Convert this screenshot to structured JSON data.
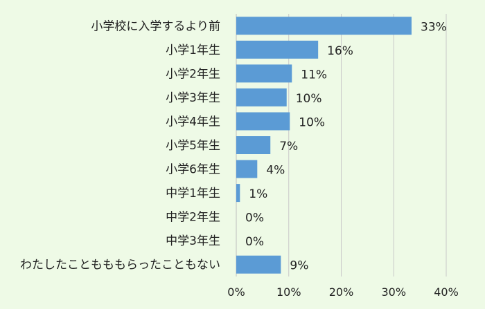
{
  "chart_data": {
    "type": "bar",
    "orientation": "horizontal",
    "categories": [
      "小学校に入学するより前",
      "小学1年生",
      "小学2年生",
      "小学3年生",
      "小学4年生",
      "小学5年生",
      "小学6年生",
      "中学1年生",
      "中学2年生",
      "中学3年生",
      "わたしたこともももらったこともない"
    ],
    "values": [
      33.4,
      15.6,
      10.6,
      9.6,
      10.2,
      6.5,
      4.0,
      0.7,
      0,
      0,
      8.5
    ],
    "value_labels": [
      "33%",
      "16%",
      "11%",
      "10%",
      "10%",
      "7%",
      "4%",
      "1%",
      "0%",
      "0%",
      "9%"
    ],
    "xlim": [
      0,
      40
    ],
    "xticks": [
      0,
      10,
      20,
      30,
      40
    ],
    "xtick_labels": [
      "0%",
      "10%",
      "20%",
      "30%",
      "40%"
    ],
    "grid": "vertical",
    "bar_color": "#5b9bd5",
    "grid_color": "#c8c8c8",
    "background": "#eefae6"
  }
}
